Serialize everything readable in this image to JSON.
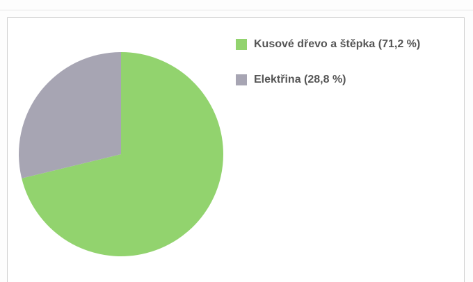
{
  "chart_data": {
    "type": "pie",
    "title": "",
    "categories": [
      "Kusové dřevo a štěpka",
      "Elektřina"
    ],
    "values": [
      71.2,
      28.8
    ],
    "colors": [
      "#92d36e",
      "#a7a5b3"
    ],
    "legend": {
      "position": "right",
      "entries": [
        {
          "label": "Kusové dřevo a štěpka (71,2 %)",
          "color": "#92d36e"
        },
        {
          "label": "Elektřina (28,8 %)",
          "color": "#a7a5b3"
        }
      ]
    }
  }
}
